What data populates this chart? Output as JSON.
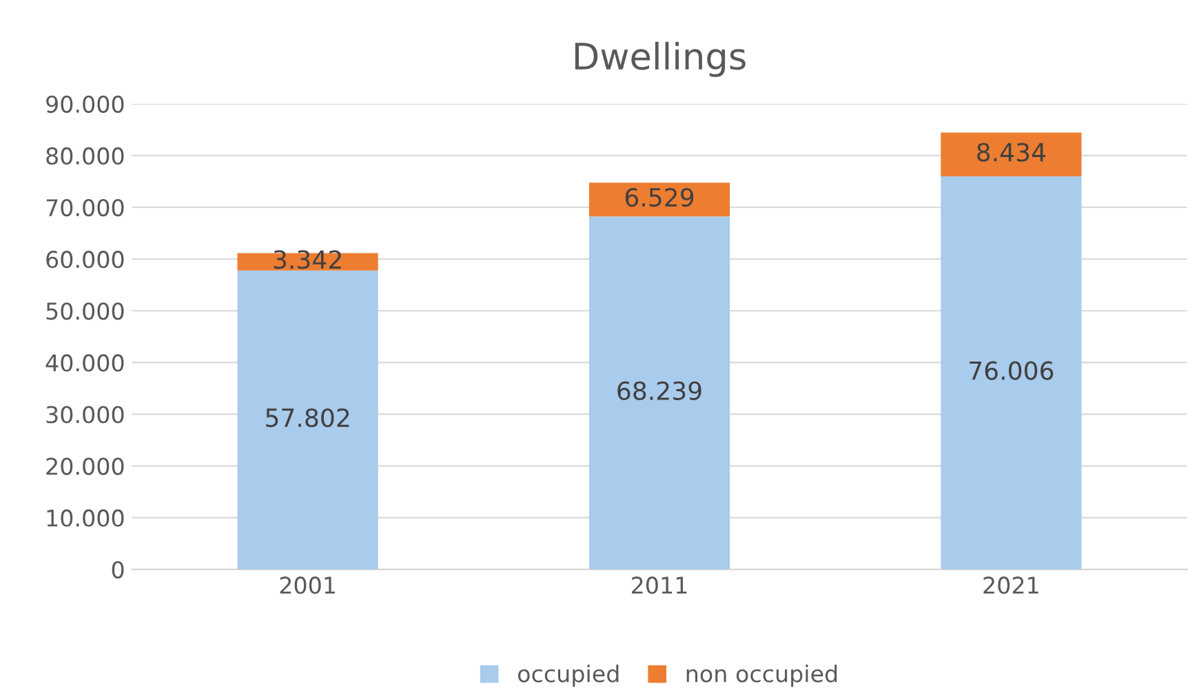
{
  "chart_data": {
    "type": "bar",
    "title": "Dwellings",
    "categories": [
      "2001",
      "2011",
      "2021"
    ],
    "stacked": true,
    "series": [
      {
        "name": "occupied",
        "color": "#a9cbec",
        "values": [
          57802,
          68239,
          76006
        ],
        "value_labels": [
          "57.802",
          "68.239",
          "76.006"
        ]
      },
      {
        "name": "non occupied",
        "color": "#ed7d31",
        "values": [
          3342,
          6529,
          8434
        ],
        "value_labels": [
          "3.342",
          "6.529",
          "8.434"
        ]
      }
    ],
    "ylim": [
      0,
      90000
    ],
    "yticks": [
      0,
      {
        "value": 10000,
        "label": "10.000"
      },
      {
        "value": 20000,
        "label": "20.000"
      },
      {
        "value": 30000,
        "label": "30.000"
      },
      {
        "value": 40000,
        "label": "40.000"
      },
      {
        "value": 50000,
        "label": "50.000"
      },
      {
        "value": 60000,
        "label": "60.000"
      },
      {
        "value": 70000,
        "label": "70.000"
      },
      {
        "value": 80000,
        "label": "80.000"
      },
      {
        "value": 90000,
        "label": "90.000"
      }
    ],
    "grid": "y",
    "legend": "bottom"
  }
}
